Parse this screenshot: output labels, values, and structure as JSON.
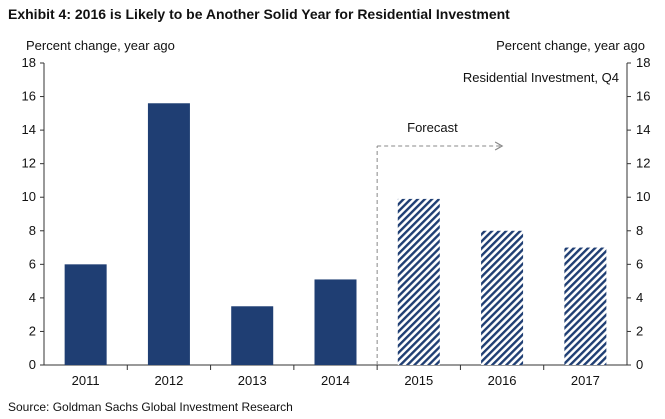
{
  "title": "Exhibit 4: 2016 is Likely to be Another Solid Year for Residential Investment",
  "source": "Source: Goldman Sachs Global Investment Research",
  "chart_data": {
    "type": "bar",
    "ylabel_left": "Percent change, year ago",
    "ylabel_right": "Percent change, year ago",
    "series_label": "Residential Investment, Q4",
    "annotation": "Forecast",
    "categories": [
      "2011",
      "2012",
      "2013",
      "2014",
      "2015",
      "2016",
      "2017"
    ],
    "values": [
      6.0,
      15.6,
      3.5,
      5.1,
      9.9,
      8.0,
      7.0
    ],
    "forecast": [
      false,
      false,
      false,
      false,
      true,
      true,
      true
    ],
    "ylim": [
      0,
      18
    ],
    "yticks": [
      "0",
      "2",
      "4",
      "6",
      "8",
      "10",
      "12",
      "14",
      "16",
      "18"
    ],
    "colors": {
      "bar": "#1f3e73",
      "hatch": "#1f3e73",
      "axis": "#333333",
      "forecast_line": "#888888"
    },
    "grid": false,
    "legend": "none"
  }
}
